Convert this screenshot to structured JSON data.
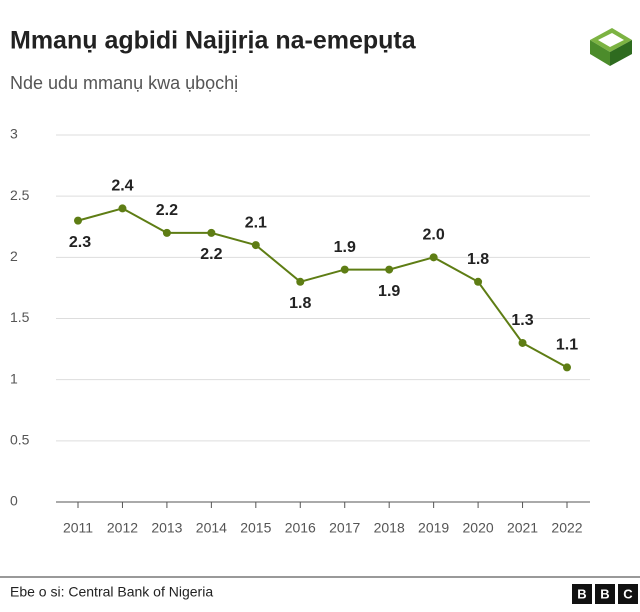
{
  "chart_data": {
    "type": "line",
    "title": "Mmanụ agbidi Naịjịrịa na-emepụta",
    "subtitle": "Nde udu mmanụ kwa ụbọchị",
    "source": "Ebe o si: Central Bank of Nigeria",
    "brand": [
      "B",
      "B",
      "C"
    ],
    "categories": [
      "2011",
      "2012",
      "2013",
      "2014",
      "2015",
      "2016",
      "2017",
      "2018",
      "2019",
      "2020",
      "2021",
      "2022"
    ],
    "values": [
      2.3,
      2.4,
      2.2,
      2.2,
      2.1,
      1.8,
      1.9,
      1.9,
      2.0,
      1.8,
      1.3,
      1.1
    ],
    "value_labels": [
      "2.3",
      "2.4",
      "2.2",
      "2.2",
      "2.1",
      "1.8",
      "1.9",
      "1.9",
      "2.0",
      "1.8",
      "1.3",
      "1.1"
    ],
    "color": "#5e7d14",
    "ylim": [
      0,
      3
    ],
    "yticks": [
      0,
      0.5,
      1,
      1.5,
      2,
      2.5,
      3
    ],
    "grid": true
  }
}
